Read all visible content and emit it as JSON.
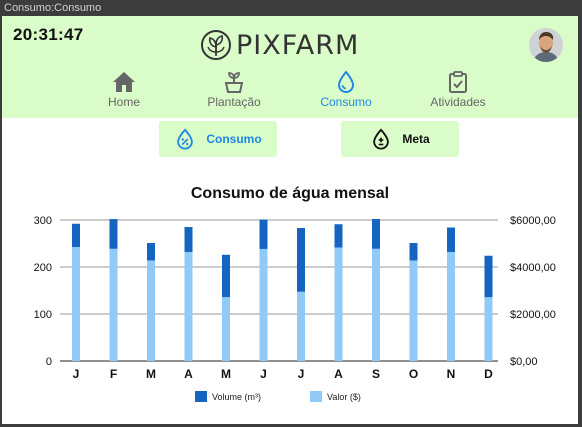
{
  "window": {
    "title": "Consumo:Consumo"
  },
  "header": {
    "time": "20:31:47",
    "logo_text": "PIXFARM"
  },
  "nav": {
    "items": [
      {
        "label": "Home",
        "icon": "house-icon"
      },
      {
        "label": "Plantação",
        "icon": "sprout-icon"
      },
      {
        "label": "Consumo",
        "icon": "water-drop-icon"
      },
      {
        "label": "Atividades",
        "icon": "clipboard-check-icon"
      }
    ],
    "active": "Consumo"
  },
  "tabs": [
    {
      "label": "Consumo",
      "icon": "drop-percent-icon"
    },
    {
      "label": "Meta",
      "icon": "drop-plus-minus-icon"
    }
  ],
  "colors": {
    "header_bg": "#d9fcc8",
    "accent_blue": "#1e88e5",
    "volume": "#1565c0",
    "valor": "#90caf9"
  },
  "chart_data": {
    "type": "bar",
    "title": "Consumo de água mensal",
    "categories": [
      "J",
      "F",
      "M",
      "A",
      "M",
      "J",
      "J",
      "A",
      "S",
      "O",
      "N",
      "D"
    ],
    "stacked_overlay": true,
    "series": [
      {
        "name": "Volume (m³)",
        "axis": "left",
        "values": [
          292,
          302,
          251,
          285,
          226,
          301,
          283,
          291,
          302,
          251,
          284,
          224
        ]
      },
      {
        "name": "Valor ($)",
        "axis": "right",
        "values": [
          4850,
          4780,
          4280,
          4640,
          2720,
          4770,
          2950,
          4830,
          4780,
          4280,
          4640,
          2720
        ]
      }
    ],
    "ylim_left": [
      0,
      300
    ],
    "yticks_left": [
      0,
      100,
      200,
      300
    ],
    "ylim_right": [
      0,
      6000
    ],
    "yticks_right": [
      "$0,00",
      "$2000,00",
      "$4000,00",
      "$6000,00"
    ],
    "grid": true,
    "legend_position": "bottom"
  }
}
